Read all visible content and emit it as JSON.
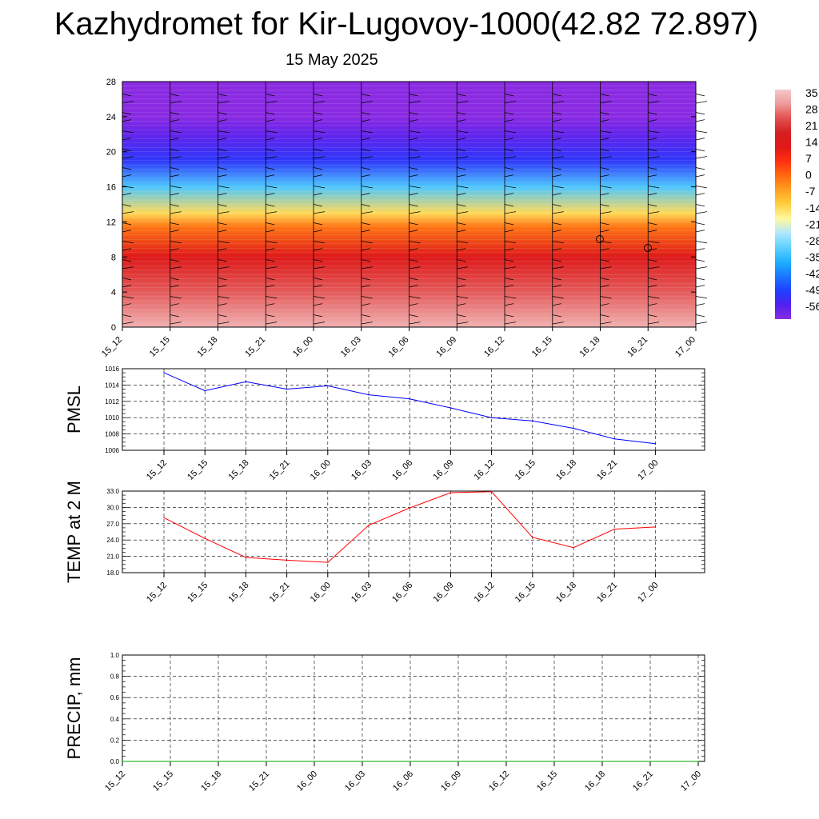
{
  "title": "Kazhydromet for Kir-Lugovoy-1000(42.82 72.897)",
  "subtitle": "15 May 2025",
  "colors": {
    "pmsl_line": "#0000ff",
    "temp_line": "#ff0000",
    "precip_line": "#00aa00",
    "grid": "#000000"
  },
  "chart_data": [
    {
      "type": "heatmap",
      "name": "temperature-profile",
      "x": [
        "15_12",
        "15_15",
        "15_18",
        "15_21",
        "16_00",
        "16_03",
        "16_06",
        "16_09",
        "16_12",
        "16_15",
        "16_18",
        "16_21",
        "17_00"
      ],
      "yticks": [
        0,
        4,
        8,
        12,
        16,
        20,
        24,
        28
      ],
      "ylim": [
        0,
        28
      ],
      "colorbar": {
        "labels": [
          "35",
          "28",
          "21",
          "14",
          "7",
          "0",
          "-7",
          "-14",
          "-21",
          "-28",
          "-35",
          "-42",
          "-49",
          "-56"
        ],
        "range": [
          -58,
          37
        ],
        "colors": [
          "#8a2be2",
          "#5020f0",
          "#2040ff",
          "#1a78ff",
          "#1eb0ff",
          "#60d0ff",
          "#b0e8ff",
          "#fff8a0",
          "#ffd040",
          "#ffa020",
          "#ff6a10",
          "#ff3010",
          "#e01818",
          "#d42020",
          "#e25050",
          "#ee9a9a",
          "#f5c8c8"
        ]
      },
      "temperature_levels": [
        {
          "height": 0,
          "value": 34
        },
        {
          "height": 4,
          "value": 26
        },
        {
          "height": 8,
          "value": 14
        },
        {
          "height": 11.5,
          "value": 0
        },
        {
          "height": 13,
          "value": -12
        },
        {
          "height": 16,
          "value": -30
        },
        {
          "height": 19,
          "value": -48
        },
        {
          "height": 22,
          "value": -54
        },
        {
          "height": 24,
          "value": -58
        },
        {
          "height": 28,
          "value": -58
        }
      ]
    },
    {
      "type": "line",
      "name": "pmsl",
      "ylabel": "PMSL",
      "x": [
        "15_12",
        "15_15",
        "15_18",
        "15_21",
        "16_00",
        "16_03",
        "16_06",
        "16_09",
        "16_12",
        "16_15",
        "16_18",
        "16_21",
        "17_00"
      ],
      "yticks": [
        "1006",
        "1008",
        "1010",
        "1012",
        "1014",
        "1016"
      ],
      "ylim": [
        1006,
        1016
      ],
      "values": [
        1015.5,
        1013.3,
        1014.4,
        1013.5,
        1013.9,
        1012.8,
        1012.3,
        1011.2,
        1010.0,
        1009.6,
        1008.7,
        1007.4,
        1006.8
      ]
    },
    {
      "type": "line",
      "name": "temp-2m",
      "ylabel": "TEMP at 2 M",
      "x": [
        "15_12",
        "15_15",
        "15_18",
        "15_21",
        "16_00",
        "16_03",
        "16_06",
        "16_09",
        "16_12",
        "16_15",
        "16_18",
        "16_21",
        "17_00"
      ],
      "yticks": [
        "18.0",
        "21.0",
        "24.0",
        "27.0",
        "30.0",
        "33.0"
      ],
      "ylim": [
        18,
        33
      ],
      "values": [
        28.1,
        24.3,
        20.8,
        20.3,
        19.9,
        26.7,
        29.9,
        32.7,
        32.9,
        24.5,
        22.6,
        26.0,
        26.4
      ]
    },
    {
      "type": "line",
      "name": "precip",
      "ylabel": "PRECIP, mm",
      "x": [
        "15_12",
        "15_15",
        "15_18",
        "15_21",
        "16_00",
        "16_03",
        "16_06",
        "16_09",
        "16_12",
        "16_15",
        "16_18",
        "16_21",
        "17_00"
      ],
      "yticks": [
        "0.0",
        "0.2",
        "0.4",
        "0.6",
        "0.8",
        "1.0"
      ],
      "ylim": [
        0,
        1
      ],
      "values": [
        0,
        0,
        0,
        0,
        0,
        0,
        0,
        0,
        0,
        0,
        0,
        0,
        0
      ]
    }
  ]
}
